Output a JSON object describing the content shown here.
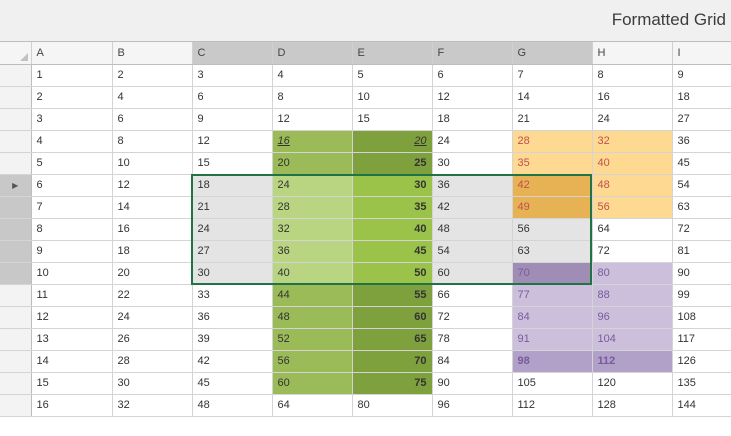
{
  "window": {
    "title": "Formatted Grid"
  },
  "columns": [
    "",
    "A",
    "B",
    "C",
    "D",
    "E",
    "F",
    "G",
    "H",
    "I"
  ],
  "selected_columns": [
    "C",
    "D",
    "E",
    "F",
    "G"
  ],
  "selected_rows": [
    6,
    7,
    8,
    9,
    10
  ],
  "current_row": 6,
  "row_arrow_icon": "row-indicator-icon",
  "rows": [
    {
      "n": 1,
      "cells": [
        "1",
        "2",
        "3",
        "4",
        "5",
        "6",
        "7",
        "8",
        "9"
      ]
    },
    {
      "n": 2,
      "cells": [
        "2",
        "4",
        "6",
        "8",
        "10",
        "12",
        "14",
        "16",
        "18"
      ]
    },
    {
      "n": 3,
      "cells": [
        "3",
        "6",
        "9",
        "12",
        "15",
        "18",
        "21",
        "24",
        "27"
      ]
    },
    {
      "n": 4,
      "cells": [
        "4",
        "8",
        "12",
        "16",
        "20",
        "24",
        "28",
        "32",
        "36"
      ]
    },
    {
      "n": 5,
      "cells": [
        "5",
        "10",
        "15",
        "20",
        "25",
        "30",
        "35",
        "40",
        "45"
      ]
    },
    {
      "n": 6,
      "cells": [
        "6",
        "12",
        "18",
        "24",
        "30",
        "36",
        "42",
        "48",
        "54"
      ]
    },
    {
      "n": 7,
      "cells": [
        "7",
        "14",
        "21",
        "28",
        "35",
        "42",
        "49",
        "56",
        "63"
      ]
    },
    {
      "n": 8,
      "cells": [
        "8",
        "16",
        "24",
        "32",
        "40",
        "48",
        "56",
        "64",
        "72"
      ]
    },
    {
      "n": 9,
      "cells": [
        "9",
        "18",
        "27",
        "36",
        "45",
        "54",
        "63",
        "72",
        "81"
      ]
    },
    {
      "n": 10,
      "cells": [
        "10",
        "20",
        "30",
        "40",
        "50",
        "60",
        "70",
        "80",
        "90"
      ]
    },
    {
      "n": 11,
      "cells": [
        "11",
        "22",
        "33",
        "44",
        "55",
        "66",
        "77",
        "88",
        "99"
      ]
    },
    {
      "n": 12,
      "cells": [
        "12",
        "24",
        "36",
        "48",
        "60",
        "72",
        "84",
        "96",
        "108"
      ]
    },
    {
      "n": 13,
      "cells": [
        "13",
        "26",
        "39",
        "52",
        "65",
        "78",
        "91",
        "104",
        "117"
      ]
    },
    {
      "n": 14,
      "cells": [
        "14",
        "28",
        "42",
        "56",
        "70",
        "84",
        "98",
        "112",
        "126"
      ]
    },
    {
      "n": 15,
      "cells": [
        "15",
        "30",
        "45",
        "60",
        "75",
        "90",
        "105",
        "120",
        "135"
      ]
    },
    {
      "n": 16,
      "cells": [
        "16",
        "32",
        "48",
        "64",
        "80",
        "96",
        "112",
        "128",
        "144"
      ]
    }
  ],
  "colors": {
    "green_mid": "#9bbb59",
    "green_dark": "#7fa13d",
    "green_light_sel": "#bad582",
    "green_sel": "#9bc349",
    "orange_light": "#fdd992",
    "orange_sel": "#e7b254",
    "purple_light": "#ccbfdc",
    "purple_mid": "#b1a0c7",
    "purple_sel": "#a08db6",
    "sel_gray": "#e4e4e4",
    "sel_border": "#217346",
    "orange_text": "#c0504d",
    "purple_text": "#7a5a9c"
  }
}
